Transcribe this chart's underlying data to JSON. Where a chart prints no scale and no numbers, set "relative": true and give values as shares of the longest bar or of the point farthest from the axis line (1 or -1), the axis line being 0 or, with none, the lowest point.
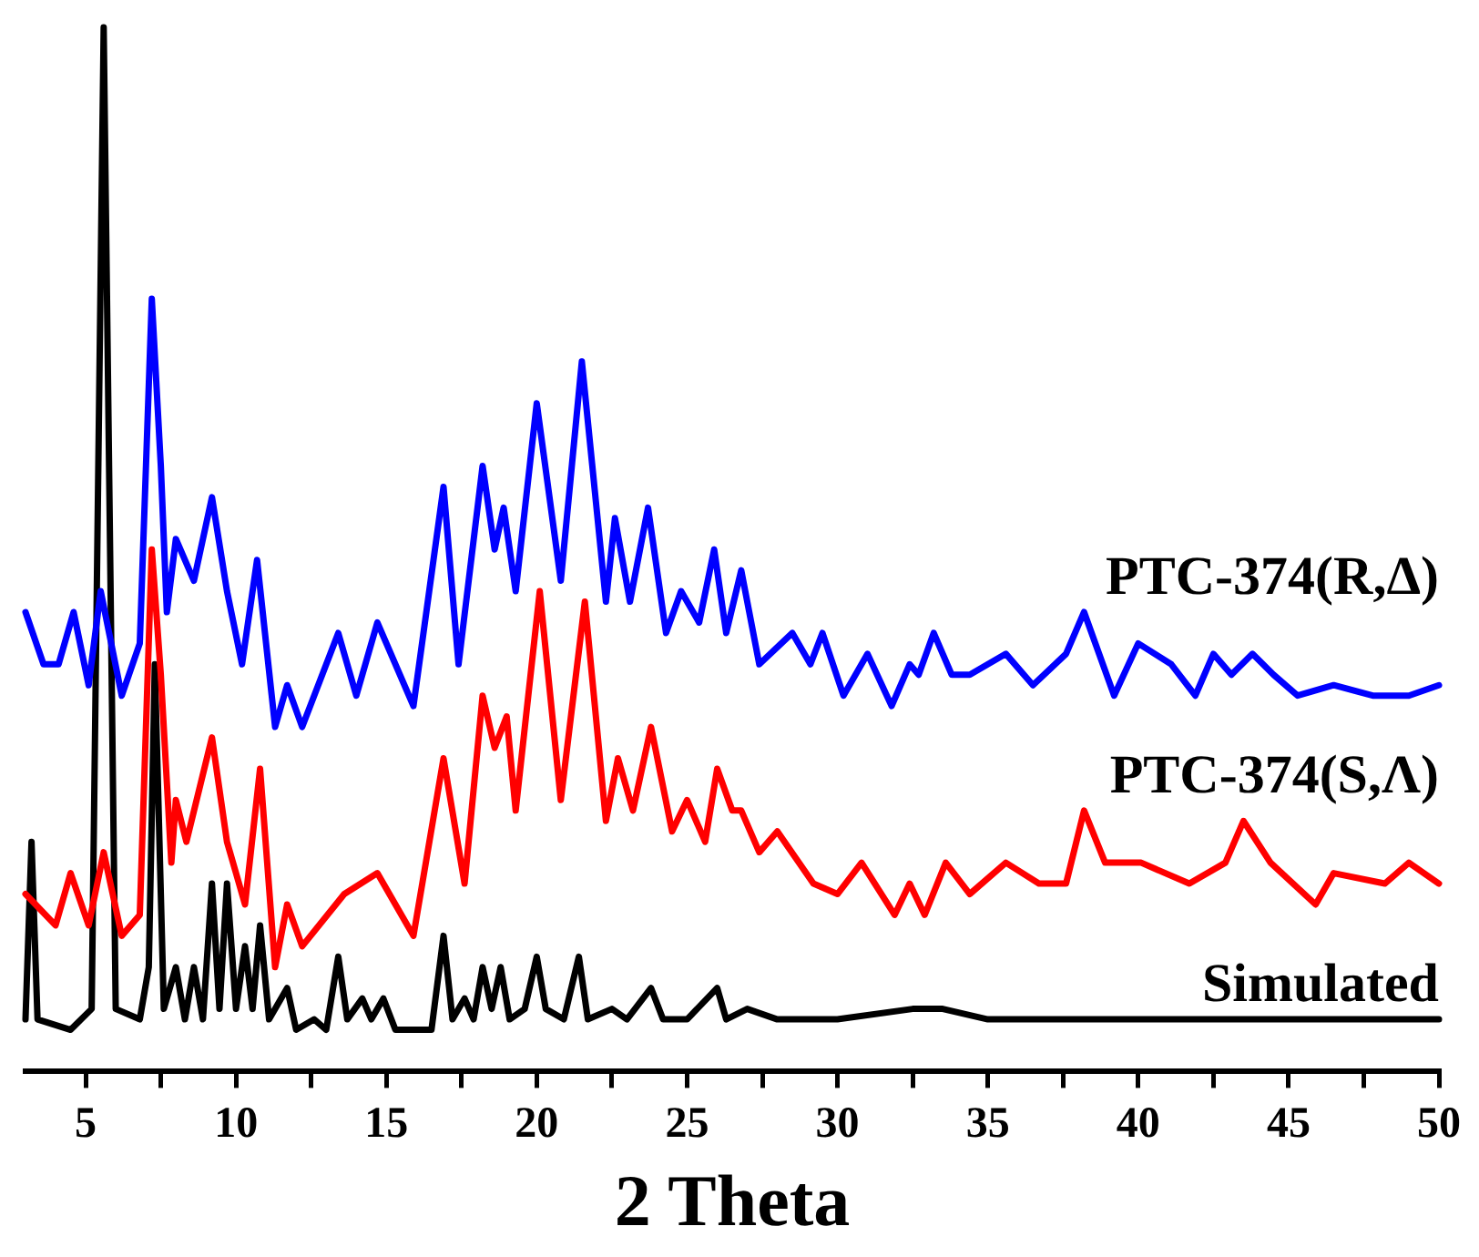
{
  "chart_data": {
    "type": "line",
    "relative": true,
    "xlabel": "2 Theta",
    "xlim": [
      3,
      50
    ],
    "xticks": [
      5,
      {
        "value": 7.5,
        "label": null
      },
      10,
      {
        "value": 12.5,
        "label": null
      },
      15,
      {
        "value": 17.5,
        "label": null
      },
      20,
      {
        "value": 22.5,
        "label": null
      },
      25,
      {
        "value": 27.5,
        "label": null
      },
      30,
      {
        "value": 32.5,
        "label": null
      },
      35,
      {
        "value": 37.5,
        "label": null
      },
      40,
      {
        "value": 42.5,
        "label": null
      },
      45,
      {
        "value": 47.5,
        "label": null
      },
      50
    ],
    "legend": false,
    "grid": false,
    "series": [
      {
        "name": "PTC-374(R,Δ)",
        "color": "#0000ff",
        "x": [
          3.0,
          3.6,
          4.1,
          4.6,
          5.1,
          5.5,
          6.2,
          6.8,
          7.2,
          7.5,
          7.7,
          8.0,
          8.6,
          9.2,
          9.7,
          10.2,
          10.7,
          11.3,
          11.7,
          12.2,
          13.4,
          14.0,
          14.7,
          15.9,
          16.9,
          17.4,
          18.2,
          18.6,
          18.9,
          19.3,
          20.0,
          20.8,
          21.5,
          22.3,
          22.6,
          23.1,
          23.7,
          24.3,
          24.8,
          25.4,
          25.9,
          26.3,
          26.8,
          27.4,
          28.5,
          29.1,
          29.5,
          30.2,
          31.0,
          31.8,
          32.4,
          32.7,
          33.2,
          33.8,
          34.4,
          35.6,
          36.5,
          37.6,
          38.2,
          39.2,
          40.0,
          41.1,
          41.9,
          42.5,
          43.1,
          43.8,
          44.5,
          45.3,
          46.5,
          47.8,
          49.0,
          50.0
        ],
        "values": [
          0.44,
          0.39,
          0.39,
          0.44,
          0.37,
          0.46,
          0.36,
          0.41,
          0.74,
          0.58,
          0.44,
          0.51,
          0.47,
          0.55,
          0.46,
          0.39,
          0.49,
          0.33,
          0.37,
          0.33,
          0.42,
          0.36,
          0.43,
          0.35,
          0.56,
          0.39,
          0.58,
          0.5,
          0.54,
          0.46,
          0.64,
          0.47,
          0.68,
          0.45,
          0.53,
          0.45,
          0.54,
          0.42,
          0.46,
          0.43,
          0.5,
          0.42,
          0.48,
          0.39,
          0.42,
          0.39,
          0.42,
          0.36,
          0.4,
          0.35,
          0.39,
          0.38,
          0.42,
          0.38,
          0.38,
          0.4,
          0.37,
          0.4,
          0.44,
          0.36,
          0.41,
          0.39,
          0.36,
          0.4,
          0.38,
          0.4,
          0.38,
          0.36,
          0.37,
          0.36,
          0.36,
          0.37
        ]
      },
      {
        "name": "PTC-374(S,Λ)",
        "color": "#ff0000",
        "x": [
          3.0,
          4.0,
          4.5,
          5.1,
          5.6,
          6.2,
          6.8,
          7.2,
          7.5,
          7.85,
          8.0,
          8.35,
          9.2,
          9.7,
          10.3,
          10.8,
          11.3,
          11.7,
          12.2,
          13.6,
          14.7,
          15.9,
          16.9,
          17.6,
          18.2,
          18.6,
          19.0,
          19.3,
          20.1,
          20.8,
          21.6,
          22.3,
          22.7,
          23.2,
          23.8,
          24.5,
          25.0,
          25.6,
          26.0,
          26.5,
          26.8,
          27.4,
          28.0,
          29.2,
          30.0,
          30.8,
          31.9,
          32.4,
          32.9,
          33.6,
          34.4,
          35.6,
          36.7,
          37.6,
          38.2,
          38.9,
          40.1,
          41.7,
          42.9,
          43.5,
          44.4,
          45.9,
          46.5,
          48.2,
          49.0,
          50.0
        ],
        "values": [
          0.17,
          0.14,
          0.19,
          0.14,
          0.21,
          0.13,
          0.15,
          0.5,
          0.38,
          0.2,
          0.26,
          0.22,
          0.32,
          0.22,
          0.16,
          0.29,
          0.1,
          0.16,
          0.12,
          0.17,
          0.19,
          0.13,
          0.3,
          0.18,
          0.36,
          0.31,
          0.34,
          0.25,
          0.46,
          0.26,
          0.45,
          0.24,
          0.3,
          0.25,
          0.33,
          0.23,
          0.26,
          0.22,
          0.29,
          0.25,
          0.25,
          0.21,
          0.23,
          0.18,
          0.17,
          0.2,
          0.15,
          0.18,
          0.15,
          0.2,
          0.17,
          0.2,
          0.18,
          0.18,
          0.25,
          0.2,
          0.2,
          0.18,
          0.2,
          0.24,
          0.2,
          0.16,
          0.19,
          0.18,
          0.2,
          0.18
        ]
      },
      {
        "name": "Simulated",
        "color": "#000000",
        "x": [
          3.0,
          3.2,
          3.4,
          4.5,
          5.2,
          5.6,
          6.0,
          6.8,
          7.1,
          7.3,
          7.6,
          8.0,
          8.3,
          8.6,
          8.9,
          9.2,
          9.45,
          9.7,
          10.0,
          10.3,
          10.55,
          10.8,
          11.1,
          11.7,
          12.0,
          12.6,
          13.0,
          13.4,
          13.7,
          14.2,
          14.5,
          14.9,
          15.3,
          16.5,
          16.9,
          17.2,
          17.6,
          17.9,
          18.2,
          18.5,
          18.8,
          19.1,
          19.6,
          20.0,
          20.3,
          20.9,
          21.4,
          21.7,
          22.5,
          23.0,
          23.8,
          24.2,
          25.0,
          26.0,
          26.3,
          27.0,
          28.0,
          30.0,
          32.5,
          33.5,
          35.0,
          40.0,
          45.0,
          50.0
        ],
        "values": [
          0.05,
          0.22,
          0.05,
          0.04,
          0.06,
          1.0,
          0.06,
          0.05,
          0.1,
          0.39,
          0.06,
          0.1,
          0.05,
          0.1,
          0.05,
          0.18,
          0.06,
          0.18,
          0.06,
          0.12,
          0.06,
          0.14,
          0.05,
          0.08,
          0.04,
          0.05,
          0.04,
          0.11,
          0.05,
          0.07,
          0.05,
          0.07,
          0.04,
          0.04,
          0.13,
          0.05,
          0.07,
          0.05,
          0.1,
          0.06,
          0.1,
          0.05,
          0.06,
          0.11,
          0.06,
          0.05,
          0.11,
          0.05,
          0.06,
          0.05,
          0.08,
          0.05,
          0.05,
          0.08,
          0.05,
          0.06,
          0.05,
          0.05,
          0.06,
          0.06,
          0.05,
          0.05,
          0.05,
          0.05
        ]
      }
    ]
  }
}
